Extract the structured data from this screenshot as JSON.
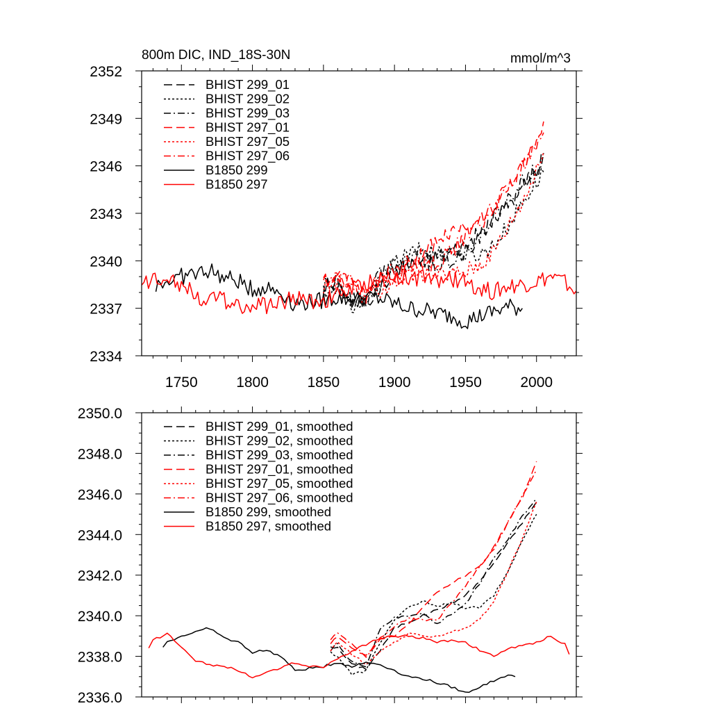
{
  "chart_data": [
    {
      "type": "line",
      "title": "800m DIC, IND_18S-30N",
      "units": "mmol/m^3",
      "xlim": [
        1722,
        2028
      ],
      "ylim": [
        2334,
        2352
      ],
      "xticks": [
        1750,
        1800,
        1850,
        1900,
        1950,
        2000
      ],
      "yticks": [
        2334,
        2337,
        2340,
        2343,
        2346,
        2349,
        2352
      ],
      "ytick_labels": [
        "2334",
        "2337",
        "2340",
        "2343",
        "2346",
        "2349",
        "2352"
      ],
      "legend_position": "top-left",
      "series": [
        {
          "name": "BHIST 299_01",
          "color": "#000000",
          "style": "longdash",
          "x": [
            1850,
            1860,
            1870,
            1880,
            1890,
            1900,
            1910,
            1920,
            1930,
            1940,
            1950,
            1960,
            1970,
            1980,
            1990,
            2000,
            2005
          ],
          "y": [
            2338.5,
            2338.4,
            2337.6,
            2337.4,
            2338.3,
            2339.4,
            2339.7,
            2340.0,
            2340.3,
            2340.6,
            2341.0,
            2341.7,
            2342.6,
            2343.6,
            2344.6,
            2345.6,
            2346.9
          ]
        },
        {
          "name": "BHIST 299_02",
          "color": "#000000",
          "style": "dot",
          "x": [
            1850,
            1860,
            1870,
            1880,
            1890,
            1900,
            1910,
            1920,
            1930,
            1940,
            1950,
            1960,
            1970,
            1980,
            1990,
            2000,
            2005
          ],
          "y": [
            2338.2,
            2338.0,
            2337.1,
            2337.3,
            2338.7,
            2339.8,
            2340.4,
            2340.7,
            2340.5,
            2340.6,
            2340.4,
            2340.4,
            2341.0,
            2342.2,
            2343.7,
            2345.0,
            2345.6
          ]
        },
        {
          "name": "BHIST 299_03",
          "color": "#000000",
          "style": "dashdot",
          "x": [
            1850,
            1860,
            1870,
            1880,
            1890,
            1900,
            1910,
            1920,
            1930,
            1940,
            1950,
            1960,
            1970,
            1980,
            1990,
            2000,
            2005
          ],
          "y": [
            2338.3,
            2338.6,
            2337.7,
            2337.5,
            2339.4,
            2339.9,
            2340.0,
            2340.1,
            2339.6,
            2340.1,
            2340.6,
            2341.6,
            2342.8,
            2343.8,
            2344.9,
            2345.8,
            2346.8
          ]
        },
        {
          "name": "BHIST 297_01",
          "color": "#ff0000",
          "style": "longdash",
          "x": [
            1850,
            1860,
            1870,
            1880,
            1890,
            1900,
            1910,
            1920,
            1930,
            1940,
            1950,
            1960,
            1970,
            1980,
            1990,
            2000,
            2005
          ],
          "y": [
            2338.6,
            2339.0,
            2338.4,
            2338.0,
            2338.8,
            2339.0,
            2339.6,
            2340.4,
            2341.2,
            2341.6,
            2342.0,
            2342.4,
            2343.4,
            2344.6,
            2345.8,
            2347.6,
            2348.8
          ]
        },
        {
          "name": "BHIST 297_05",
          "color": "#ff0000",
          "style": "dot",
          "x": [
            1850,
            1860,
            1870,
            1880,
            1890,
            1900,
            1910,
            1920,
            1930,
            1940,
            1950,
            1960,
            1970,
            1980,
            1990,
            2000,
            2005
          ],
          "y": [
            2338.3,
            2338.7,
            2338.1,
            2337.6,
            2338.2,
            2338.7,
            2339.1,
            2339.0,
            2339.0,
            2339.2,
            2339.4,
            2339.8,
            2340.7,
            2342.2,
            2343.8,
            2345.6,
            2346.9
          ]
        },
        {
          "name": "BHIST 297_06",
          "color": "#ff0000",
          "style": "dashdot",
          "x": [
            1850,
            1860,
            1870,
            1880,
            1890,
            1900,
            1910,
            1920,
            1930,
            1940,
            1950,
            1960,
            1970,
            1980,
            1990,
            2000,
            2005
          ],
          "y": [
            2338.8,
            2339.2,
            2338.6,
            2338.0,
            2338.9,
            2339.5,
            2339.9,
            2339.8,
            2339.8,
            2340.6,
            2341.5,
            2342.4,
            2343.3,
            2344.6,
            2345.9,
            2347.2,
            2348.1
          ]
        },
        {
          "name": "B1850 299",
          "color": "#000000",
          "style": "solid",
          "x": [
            1732,
            1740,
            1750,
            1760,
            1770,
            1780,
            1790,
            1800,
            1810,
            1820,
            1830,
            1840,
            1850,
            1860,
            1870,
            1880,
            1890,
            1900,
            1910,
            1920,
            1930,
            1940,
            1950,
            1960,
            1970,
            1980,
            1990
          ],
          "y": [
            2338.5,
            2338.7,
            2339.0,
            2339.2,
            2339.4,
            2338.9,
            2338.7,
            2338.2,
            2338.3,
            2338.0,
            2337.3,
            2337.4,
            2337.5,
            2337.7,
            2337.5,
            2337.7,
            2337.6,
            2337.3,
            2337.0,
            2336.9,
            2336.7,
            2336.5,
            2336.2,
            2336.5,
            2336.8,
            2337.1,
            2337.0
          ]
        },
        {
          "name": "B1850 297",
          "color": "#ff0000",
          "style": "solid",
          "x": [
            1722,
            1730,
            1740,
            1750,
            1760,
            1770,
            1780,
            1790,
            1800,
            1810,
            1820,
            1830,
            1840,
            1850,
            1860,
            1870,
            1880,
            1890,
            1900,
            1910,
            1920,
            1930,
            1940,
            1950,
            1960,
            1970,
            1980,
            1990,
            2000,
            2010,
            2020,
            2028
          ],
          "y": [
            2338.4,
            2338.8,
            2339.1,
            2338.5,
            2337.8,
            2337.6,
            2337.5,
            2337.3,
            2337.0,
            2337.2,
            2337.4,
            2337.7,
            2337.5,
            2337.5,
            2337.9,
            2338.2,
            2338.6,
            2338.9,
            2339.0,
            2339.0,
            2338.9,
            2338.7,
            2338.8,
            2338.7,
            2338.3,
            2338.0,
            2338.4,
            2338.5,
            2338.7,
            2339.0,
            2338.6,
            2338.1
          ]
        }
      ]
    },
    {
      "type": "line",
      "xlim": [
        1722,
        2028
      ],
      "ylim": [
        2336,
        2350
      ],
      "xticks": [
        1750,
        1800,
        1850,
        1900,
        1950,
        2000
      ],
      "yticks": [
        2336,
        2338,
        2340,
        2342,
        2344,
        2346,
        2348,
        2350
      ],
      "ytick_labels": [
        "2336.0",
        "2338.0",
        "2340.0",
        "2342.0",
        "2344.0",
        "2346.0",
        "2348.0",
        "2350.0"
      ],
      "legend_position": "top-left",
      "series": [
        {
          "name": "BHIST 299_01, smoothed",
          "color": "#000000",
          "style": "longdash",
          "x": [
            1855,
            1860,
            1870,
            1880,
            1890,
            1900,
            1910,
            1920,
            1930,
            1940,
            1950,
            1960,
            1970,
            1980,
            1990,
            2000
          ],
          "y": [
            2338.5,
            2338.4,
            2337.6,
            2337.4,
            2338.3,
            2339.4,
            2339.7,
            2340.0,
            2340.3,
            2340.6,
            2341.0,
            2341.7,
            2342.6,
            2343.6,
            2344.6,
            2345.6
          ]
        },
        {
          "name": "BHIST 299_02, smoothed",
          "color": "#000000",
          "style": "dot",
          "x": [
            1855,
            1860,
            1870,
            1880,
            1890,
            1900,
            1910,
            1920,
            1930,
            1940,
            1950,
            1960,
            1970,
            1980,
            1990,
            2000
          ],
          "y": [
            2338.2,
            2338.0,
            2337.1,
            2337.3,
            2338.7,
            2339.8,
            2340.4,
            2340.7,
            2340.5,
            2340.6,
            2340.4,
            2340.4,
            2341.0,
            2342.2,
            2343.7,
            2345.0
          ]
        },
        {
          "name": "BHIST 299_03, smoothed",
          "color": "#000000",
          "style": "dashdot",
          "x": [
            1855,
            1860,
            1870,
            1880,
            1890,
            1900,
            1910,
            1920,
            1930,
            1940,
            1950,
            1960,
            1970,
            1980,
            1990,
            2000
          ],
          "y": [
            2338.3,
            2338.6,
            2337.7,
            2337.5,
            2339.4,
            2339.9,
            2340.0,
            2340.1,
            2339.6,
            2340.1,
            2340.6,
            2341.6,
            2342.8,
            2343.8,
            2344.9,
            2345.8
          ]
        },
        {
          "name": "BHIST 297_01, smoothed",
          "color": "#ff0000",
          "style": "longdash",
          "x": [
            1855,
            1860,
            1870,
            1880,
            1890,
            1900,
            1910,
            1920,
            1930,
            1940,
            1950,
            1960,
            1970,
            1980,
            1990,
            2000
          ],
          "y": [
            2338.6,
            2339.0,
            2338.4,
            2338.0,
            2338.8,
            2339.0,
            2339.6,
            2340.4,
            2341.2,
            2341.6,
            2342.0,
            2342.4,
            2343.4,
            2344.6,
            2345.8,
            2347.6
          ]
        },
        {
          "name": "BHIST 297_05, smoothed",
          "color": "#ff0000",
          "style": "dot",
          "x": [
            1855,
            1860,
            1870,
            1880,
            1890,
            1900,
            1910,
            1920,
            1930,
            1940,
            1950,
            1960,
            1970,
            1980,
            1990,
            2000
          ],
          "y": [
            2338.3,
            2338.7,
            2338.1,
            2337.6,
            2338.2,
            2338.7,
            2339.1,
            2339.0,
            2339.0,
            2339.2,
            2339.4,
            2339.8,
            2340.7,
            2342.2,
            2343.8,
            2345.6
          ]
        },
        {
          "name": "BHIST 297_06, smoothed",
          "color": "#ff0000",
          "style": "dashdot",
          "x": [
            1855,
            1860,
            1870,
            1880,
            1890,
            1900,
            1910,
            1920,
            1930,
            1940,
            1950,
            1960,
            1970,
            1980,
            1990,
            2000
          ],
          "y": [
            2338.8,
            2339.2,
            2338.6,
            2338.0,
            2338.9,
            2339.5,
            2339.9,
            2339.8,
            2339.8,
            2340.6,
            2341.5,
            2342.4,
            2343.3,
            2344.6,
            2345.9,
            2347.2
          ]
        },
        {
          "name": "B1850 299, smoothed",
          "color": "#000000",
          "style": "solid",
          "x": [
            1737,
            1740,
            1750,
            1760,
            1770,
            1780,
            1790,
            1800,
            1810,
            1820,
            1830,
            1840,
            1850,
            1860,
            1870,
            1880,
            1890,
            1900,
            1910,
            1920,
            1930,
            1940,
            1950,
            1960,
            1970,
            1980,
            1985
          ],
          "y": [
            2338.5,
            2338.7,
            2339.0,
            2339.2,
            2339.4,
            2338.9,
            2338.7,
            2338.2,
            2338.3,
            2338.0,
            2337.3,
            2337.4,
            2337.5,
            2337.7,
            2337.5,
            2337.7,
            2337.6,
            2337.3,
            2337.0,
            2336.9,
            2336.7,
            2336.5,
            2336.2,
            2336.5,
            2336.8,
            2337.1,
            2337.0
          ]
        },
        {
          "name": "B1850 297, smoothed",
          "color": "#ff0000",
          "style": "solid",
          "x": [
            1727,
            1730,
            1740,
            1750,
            1760,
            1770,
            1780,
            1790,
            1800,
            1810,
            1820,
            1830,
            1840,
            1850,
            1860,
            1870,
            1880,
            1890,
            1900,
            1910,
            1920,
            1930,
            1940,
            1950,
            1960,
            1970,
            1980,
            1990,
            2000,
            2010,
            2020,
            2023
          ],
          "y": [
            2338.4,
            2338.8,
            2339.1,
            2338.5,
            2337.8,
            2337.6,
            2337.5,
            2337.3,
            2337.0,
            2337.2,
            2337.4,
            2337.7,
            2337.5,
            2337.5,
            2337.9,
            2338.2,
            2338.6,
            2338.9,
            2339.0,
            2339.0,
            2338.9,
            2338.7,
            2338.8,
            2338.7,
            2338.3,
            2338.0,
            2338.4,
            2338.5,
            2338.7,
            2339.0,
            2338.6,
            2338.1
          ]
        }
      ]
    }
  ]
}
